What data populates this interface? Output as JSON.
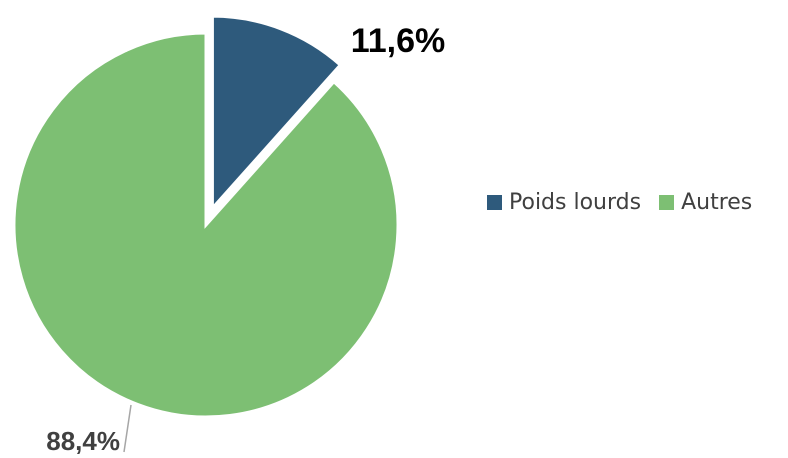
{
  "chart_data": {
    "type": "pie",
    "title": "",
    "slices": [
      {
        "name": "Poids lourds",
        "value": 11.6,
        "label": "11,6%",
        "color": "#2e5a7c",
        "exploded": true
      },
      {
        "name": "Autres",
        "value": 88.4,
        "label": "88,4%",
        "color": "#7dbf73",
        "exploded": false
      }
    ],
    "legend": {
      "position": "right",
      "entries": [
        "Poids lourds",
        "Autres"
      ]
    },
    "leader_line_color": "#a6a6a6"
  }
}
